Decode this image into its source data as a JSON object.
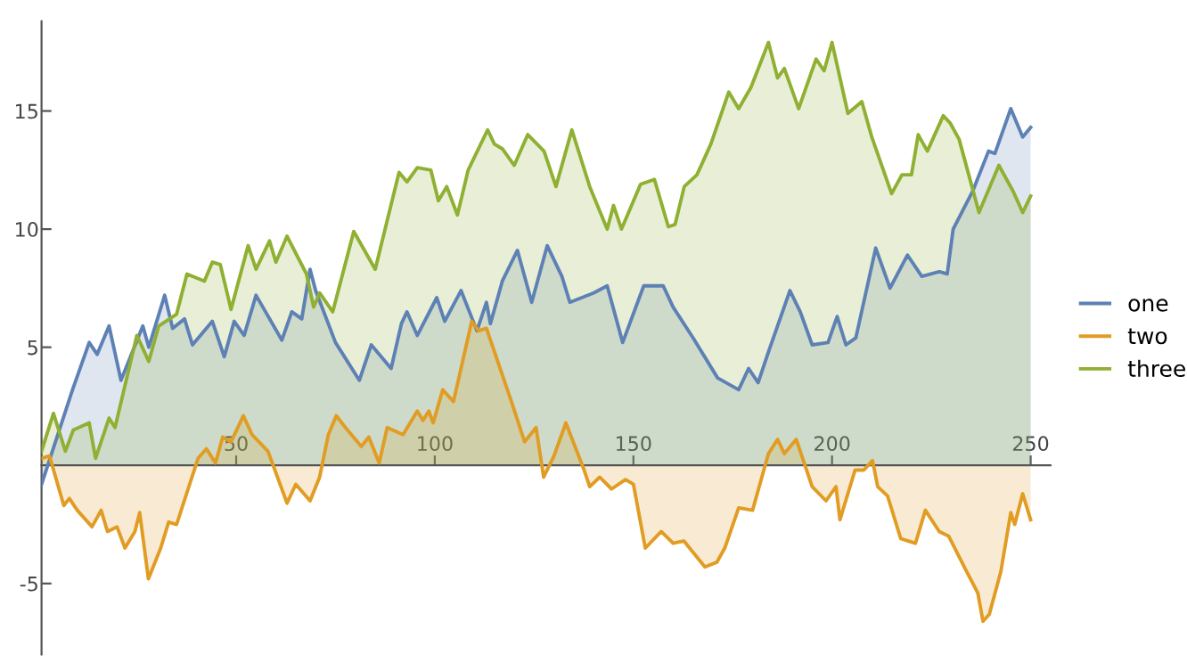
{
  "chart_data": {
    "type": "area",
    "xlim": [
      1,
      255
    ],
    "ylim": [
      -8,
      18.8
    ],
    "xticks": [
      50,
      100,
      150,
      200,
      250
    ],
    "yticks": [
      -5,
      5,
      10,
      15
    ],
    "grid": false,
    "legend": "right",
    "series": [
      {
        "name": "one",
        "color": "#5e81b5",
        "x": [
          1,
          8.8,
          13,
          15,
          18,
          21,
          26.5,
          28,
          32,
          34,
          37,
          39,
          44,
          47,
          49.5,
          52,
          55,
          61.5,
          64,
          66.5,
          68.6,
          70,
          75,
          81,
          84,
          89,
          91.6,
          93,
          95.6,
          100.5,
          102.5,
          106.6,
          110.6,
          113,
          114,
          117,
          120.8,
          124.4,
          128.3,
          132,
          134,
          140,
          143.4,
          147.3,
          152.6,
          157.5,
          160,
          165,
          171.2,
          176.5,
          179,
          181.4,
          184,
          189.4,
          192,
          195,
          199,
          201.3,
          203.5,
          206,
          211,
          214.6,
          219,
          222.6,
          227,
          229,
          230.5,
          235.4,
          239.4,
          241,
          245,
          248,
          250
        ],
        "values": [
          -0.8,
          3.2,
          5.2,
          4.7,
          5.9,
          3.6,
          5.9,
          5,
          7.2,
          5.8,
          6.2,
          5.1,
          6.1,
          4.6,
          6.1,
          5.5,
          7.2,
          5.3,
          6.5,
          6.2,
          8.3,
          7.4,
          5.2,
          3.6,
          5.1,
          4.1,
          6.0,
          6.5,
          5.5,
          7.1,
          6.1,
          7.4,
          5.7,
          6.9,
          6.0,
          7.8,
          9.1,
          6.9,
          9.3,
          8.0,
          6.9,
          7.3,
          7.6,
          5.2,
          7.6,
          7.6,
          6.7,
          5.4,
          3.7,
          3.2,
          4.1,
          3.5,
          4.8,
          7.4,
          6.5,
          5.1,
          5.2,
          6.3,
          5.1,
          5.4,
          9.2,
          7.5,
          8.9,
          8.0,
          8.2,
          8.1,
          10,
          11.6,
          13.3,
          13.2,
          15.1,
          13.9,
          14.3
        ]
      },
      {
        "name": "two",
        "color": "#e19c24",
        "x": [
          1,
          3,
          6.6,
          8,
          10,
          13.7,
          16,
          17.6,
          20,
          22,
          24.5,
          25.7,
          27.9,
          31,
          33,
          35,
          40.4,
          42.5,
          44.8,
          46.6,
          48.7,
          51.8,
          54,
          58,
          62.8,
          65,
          68.6,
          71,
          73.2,
          75.2,
          77.5,
          81.5,
          83.4,
          86,
          88,
          92,
          95.6,
          97,
          98.5,
          99.6,
          102,
          104.7,
          109.3,
          111,
          113,
          119.5,
          122.6,
          125.5,
          127.4,
          130,
          133,
          137.6,
          139,
          141.5,
          144.5,
          148,
          150,
          153,
          157,
          160,
          162.7,
          168,
          171,
          173,
          176.5,
          180,
          182,
          184,
          186.3,
          188,
          191,
          195,
          198.5,
          201,
          202,
          205.8,
          208,
          210.2,
          211.5,
          214,
          217.3,
          221,
          223.5,
          227,
          229.4,
          233.6,
          236.7,
          238,
          239.6,
          242.5,
          245,
          246,
          248,
          250
        ],
        "values": [
          0.3,
          0.4,
          -1.7,
          -1.4,
          -1.9,
          -2.6,
          -1.9,
          -2.8,
          -2.6,
          -3.5,
          -2.8,
          -2.0,
          -4.8,
          -3.5,
          -2.4,
          -2.5,
          0.3,
          0.7,
          0.1,
          1.2,
          1.0,
          2.1,
          1.3,
          0.6,
          -1.6,
          -0.8,
          -1.5,
          -0.5,
          1.3,
          2.1,
          1.6,
          0.8,
          1.2,
          0.1,
          1.6,
          1.3,
          2.3,
          1.9,
          2.3,
          1.8,
          3.2,
          2.7,
          6.1,
          5.7,
          5.8,
          2.6,
          1.0,
          1.6,
          -0.5,
          0.4,
          1.8,
          -0.2,
          -0.9,
          -0.5,
          -1.0,
          -0.6,
          -0.8,
          -3.5,
          -2.8,
          -3.3,
          -3.2,
          -4.3,
          -4.1,
          -3.5,
          -1.8,
          -1.9,
          -0.7,
          0.5,
          1.1,
          0.5,
          1.1,
          -0.9,
          -1.5,
          -0.9,
          -2.3,
          -0.2,
          -0.2,
          0.2,
          -0.9,
          -1.3,
          -3.1,
          -3.3,
          -1.9,
          -2.8,
          -3.0,
          -4.4,
          -5.4,
          -6.6,
          -6.3,
          -4.5,
          -2.0,
          -2.5,
          -1.2,
          -2.3
        ]
      },
      {
        "name": "three",
        "color": "#8fb032",
        "x": [
          1,
          4,
          7,
          9,
          13,
          14.6,
          18,
          19.5,
          25,
          28,
          30.5,
          35,
          37.6,
          42,
          44,
          46,
          48.7,
          53,
          55,
          58.4,
          60,
          62.8,
          67.7,
          69.5,
          71,
          74.3,
          79.6,
          85,
          91,
          93,
          95.6,
          99,
          100.9,
          103,
          105.7,
          108.4,
          113.3,
          115,
          117,
          120,
          123.4,
          127.5,
          130.5,
          134.5,
          139,
          143.4,
          145,
          147,
          151.8,
          155.3,
          158.8,
          160.5,
          162.8,
          166,
          169.5,
          174,
          176.5,
          179.6,
          184,
          186.3,
          188,
          191.6,
          196,
          198,
          200,
          204,
          207.5,
          210,
          215,
          217.6,
          220,
          221.7,
          224,
          228,
          229.7,
          232,
          237,
          242,
          245.6,
          248,
          250
        ],
        "values": [
          0.6,
          2.2,
          0.6,
          1.5,
          1.8,
          0.3,
          2.0,
          1.6,
          5.5,
          4.4,
          5.9,
          6.4,
          8.1,
          7.8,
          8.6,
          8.5,
          6.6,
          9.3,
          8.3,
          9.5,
          8.6,
          9.7,
          8.1,
          6.7,
          7.3,
          6.5,
          9.9,
          8.3,
          12.4,
          12.0,
          12.6,
          12.5,
          11.2,
          11.8,
          10.6,
          12.5,
          14.2,
          13.6,
          13.4,
          12.7,
          14.0,
          13.3,
          11.8,
          14.2,
          11.8,
          10.0,
          11,
          10,
          11.9,
          12.1,
          10.1,
          10.2,
          11.8,
          12.3,
          13.6,
          15.8,
          15.1,
          16.0,
          17.9,
          16.4,
          16.8,
          15.1,
          17.2,
          16.7,
          17.9,
          14.9,
          15.4,
          13.9,
          11.5,
          12.3,
          12.3,
          14.0,
          13.3,
          14.8,
          14.5,
          13.8,
          10.7,
          12.7,
          11.6,
          10.7,
          11.4
        ]
      }
    ]
  }
}
